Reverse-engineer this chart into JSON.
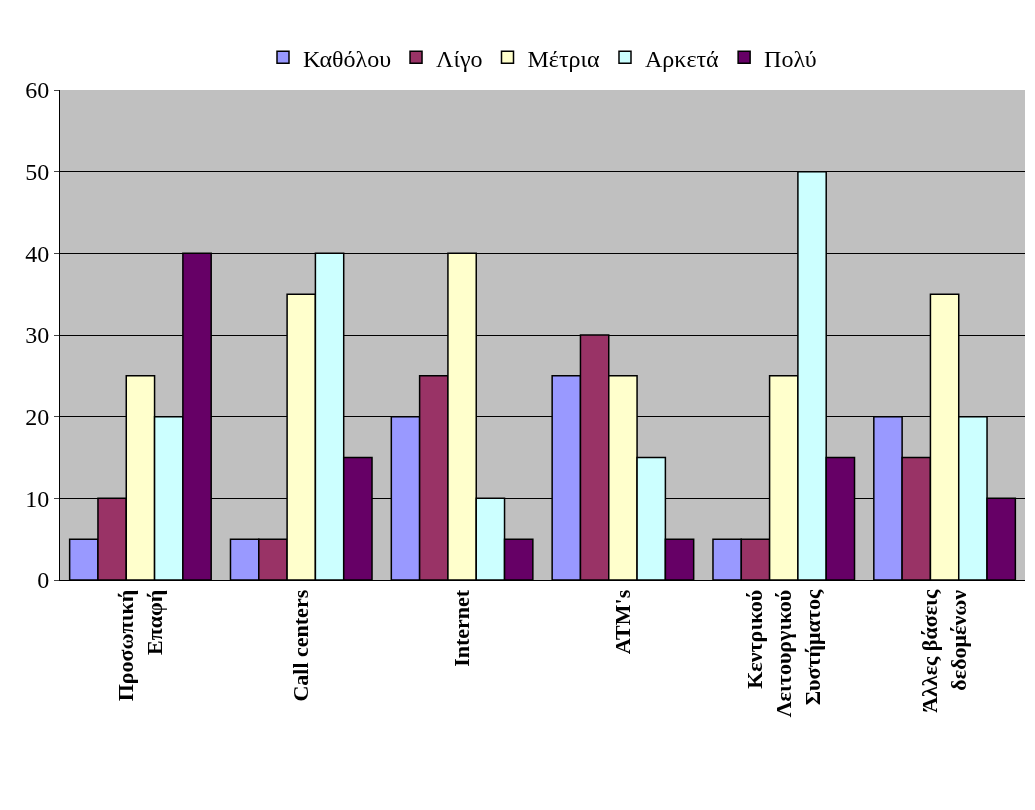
{
  "chart_data": {
    "type": "bar",
    "categories": [
      "Προσωπική\nΕπαφή",
      "Call centers",
      "Internet",
      "ATM's",
      "Κεντρικού\nΛειτουργικού\nΣυστήματος",
      "Άλλες βάσεις\nδεδομένων"
    ],
    "series": [
      {
        "name": "Καθόλου",
        "color": "#9999ff",
        "values": [
          5,
          5,
          20,
          25,
          5,
          20
        ]
      },
      {
        "name": "Λίγο",
        "color": "#993366",
        "values": [
          10,
          5,
          25,
          30,
          5,
          15
        ]
      },
      {
        "name": "Μέτρια",
        "color": "#ffffcc",
        "values": [
          25,
          35,
          40,
          25,
          25,
          35
        ]
      },
      {
        "name": "Αρκετά",
        "color": "#ccffff",
        "values": [
          20,
          40,
          10,
          15,
          50,
          20
        ]
      },
      {
        "name": "Πολύ",
        "color": "#660066",
        "values": [
          40,
          15,
          5,
          5,
          15,
          10
        ]
      }
    ],
    "ylim": [
      0,
      60
    ],
    "yticks": [
      0,
      10,
      20,
      30,
      40,
      50,
      60
    ],
    "grid": "y",
    "legend": "top"
  }
}
